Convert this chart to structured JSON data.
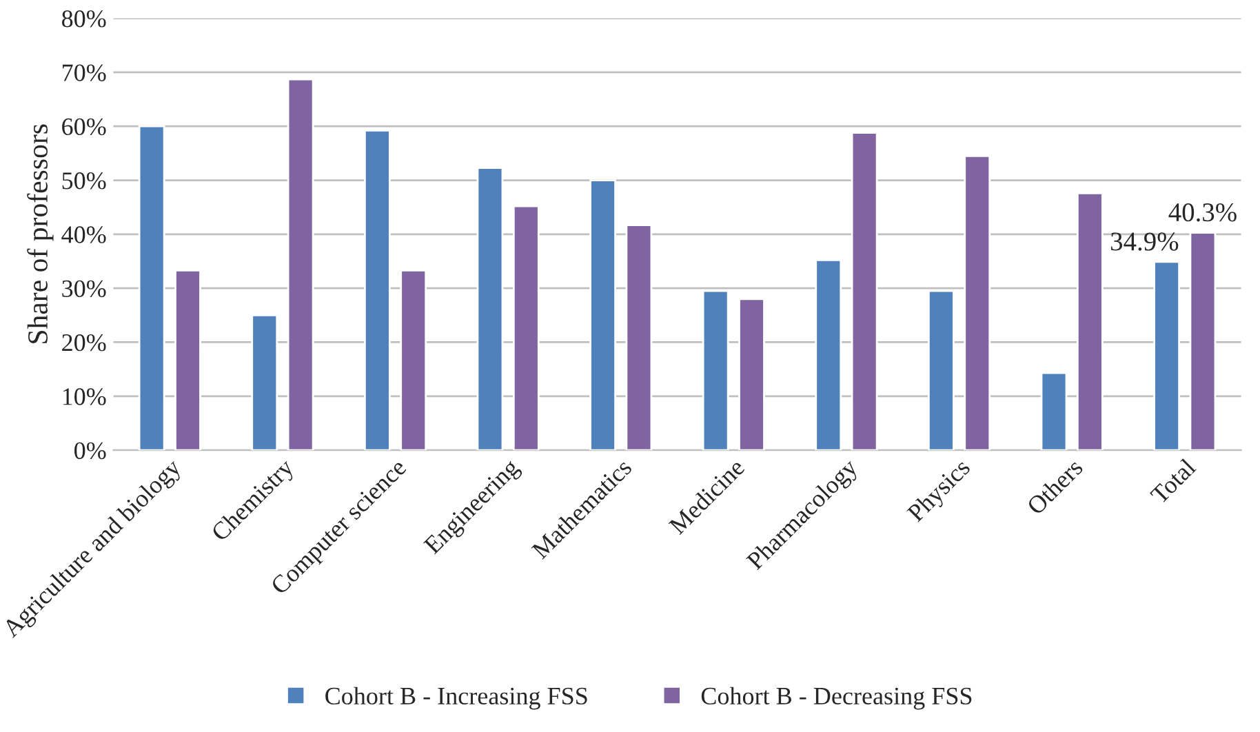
{
  "chart_data": {
    "type": "bar",
    "ylabel": "Share of professors",
    "categories": [
      "Agriculture and biology",
      "Chemistry",
      "Computer science",
      "Engineering",
      "Mathematics",
      "Medicine",
      "Pharmacology",
      "Physics",
      "Others",
      "Total"
    ],
    "series": [
      {
        "name": "Cohort B - Increasing FSS",
        "color": "#4f81bd",
        "values": [
          60,
          25,
          59.2,
          52.3,
          50,
          29.5,
          35.2,
          29.5,
          14.3,
          34.9
        ],
        "value_labels": [
          null,
          null,
          null,
          null,
          null,
          null,
          null,
          null,
          null,
          "34.9%"
        ]
      },
      {
        "name": "Cohort B - Decreasing FSS",
        "color": "#8064a2",
        "values": [
          33.3,
          68.7,
          33.3,
          45.2,
          41.7,
          28,
          58.8,
          54.5,
          47.6,
          40.3
        ],
        "value_labels": [
          null,
          null,
          null,
          null,
          null,
          null,
          null,
          null,
          null,
          "40.3%"
        ]
      }
    ],
    "ylim": [
      0,
      80
    ],
    "yticks": [
      {
        "value": 0,
        "label": "0%"
      },
      {
        "value": 10,
        "label": "10%"
      },
      {
        "value": 20,
        "label": "20%"
      },
      {
        "value": 30,
        "label": "30%"
      },
      {
        "value": 40,
        "label": "40%"
      },
      {
        "value": 50,
        "label": "50%"
      },
      {
        "value": 60,
        "label": "60%"
      },
      {
        "value": 70,
        "label": "70%"
      },
      {
        "value": 80,
        "label": "80%"
      }
    ],
    "grid": "y",
    "legend": "bottom"
  }
}
